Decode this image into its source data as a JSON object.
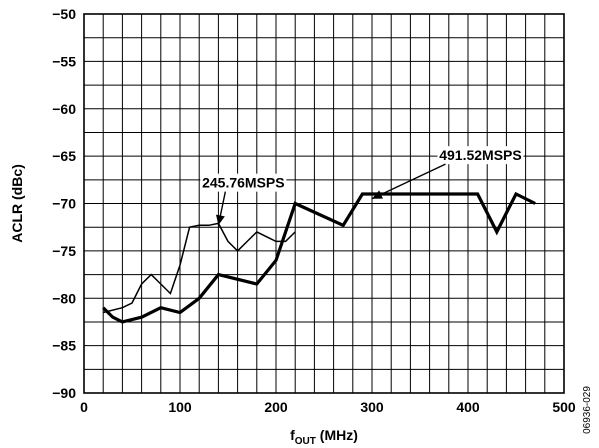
{
  "chart_data": {
    "type": "line",
    "xlabel_main": "f",
    "xlabel_sub": "OUT",
    "xlabel_unit": " (MHz)",
    "ylabel": "ACLR (dBc)",
    "xlim": [
      0,
      500
    ],
    "ylim": [
      -90,
      -50
    ],
    "x_ticks": [
      0,
      100,
      200,
      300,
      400,
      500
    ],
    "x_tick_labels": [
      "0",
      "100",
      "200",
      "300",
      "400",
      "500"
    ],
    "y_ticks": [
      -90,
      -85,
      -80,
      -75,
      -70,
      -65,
      -60,
      -55,
      -50
    ],
    "y_tick_labels": [
      "−90",
      "−85",
      "−80",
      "−75",
      "−70",
      "−65",
      "−60",
      "−55",
      "−50"
    ],
    "grid": true,
    "x_minor_step": 20,
    "y_minor_step": 2.5,
    "series": [
      {
        "name": "245.76MSPS",
        "color": "#000000",
        "weight": "thin",
        "x": [
          20,
          40,
          50,
          60,
          70,
          80,
          90,
          100,
          110,
          120,
          130,
          140,
          150,
          160,
          170,
          180,
          190,
          200,
          210,
          220
        ],
        "y": [
          -81.5,
          -81,
          -80.5,
          -78.5,
          -77.5,
          -78.5,
          -79.5,
          -76.5,
          -72.5,
          -72.3,
          -72.3,
          -72.1,
          -74,
          -75,
          -74,
          -73,
          -73.5,
          -74,
          -74,
          -73
        ]
      },
      {
        "name": "491.52MSPS",
        "color": "#000000",
        "weight": "thick",
        "x": [
          20,
          30,
          40,
          60,
          80,
          100,
          120,
          140,
          180,
          200,
          220,
          270,
          290,
          310,
          350,
          410,
          430,
          450,
          470
        ],
        "y": [
          -81,
          -82,
          -82.5,
          -82,
          -81,
          -81.5,
          -80,
          -77.5,
          -78.5,
          -76,
          -70,
          -72.3,
          -69,
          -69,
          -69,
          -69,
          -73,
          -69,
          -70
        ]
      }
    ],
    "annotations": [
      {
        "text": "245.76MSPS",
        "series": 0
      },
      {
        "text": "491.52MSPS",
        "series": 1
      }
    ],
    "figure_id": "06936-029"
  }
}
